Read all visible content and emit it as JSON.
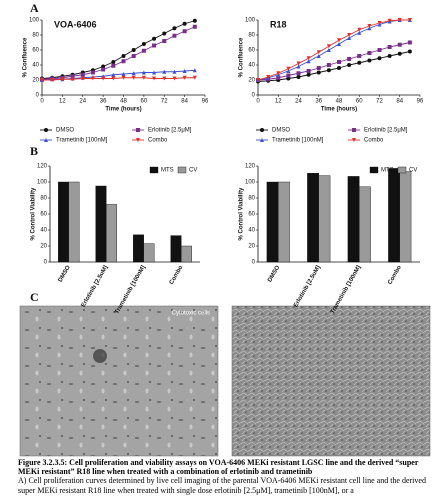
{
  "panel_labels": [
    "A",
    "B",
    "C"
  ],
  "chart_data": [
    {
      "type": "line",
      "title": "VOA-6406",
      "xlabel": "Time (hours)",
      "ylabel": "% Confluence",
      "x": [
        0,
        6,
        12,
        18,
        24,
        30,
        36,
        42,
        48,
        54,
        60,
        66,
        72,
        78,
        84,
        90
      ],
      "xlim": [
        0,
        96
      ],
      "xticks": [
        0,
        12,
        24,
        36,
        48,
        60,
        72,
        84,
        96
      ],
      "ylim": [
        0,
        100
      ],
      "yticks": [
        0,
        20,
        40,
        60,
        80,
        100
      ],
      "series": [
        {
          "name": "DMSO",
          "color": "#111111",
          "marker": "circle",
          "values": [
            22,
            23,
            25,
            27,
            30,
            33,
            38,
            44,
            52,
            60,
            68,
            75,
            82,
            89,
            95,
            99
          ]
        },
        {
          "name": "Erlotinib [2.5μM]",
          "color": "#7b2d8e",
          "marker": "square",
          "values": [
            21,
            22,
            23,
            25,
            27,
            30,
            34,
            39,
            45,
            52,
            59,
            66,
            72,
            79,
            85,
            91
          ]
        },
        {
          "name": "Trametinib [100nM]",
          "color": "#3a4fd8",
          "marker": "triangle",
          "values": [
            20,
            21,
            21,
            22,
            23,
            24,
            25,
            27,
            28,
            29,
            30,
            30,
            31,
            31,
            32,
            33
          ]
        },
        {
          "name": "Combo",
          "color": "#e0302a",
          "marker": "triangle-down",
          "values": [
            20,
            20,
            21,
            21,
            22,
            22,
            22,
            22,
            23,
            23,
            23,
            22,
            22,
            22,
            23,
            23
          ]
        }
      ]
    },
    {
      "type": "line",
      "title": "R18",
      "xlabel": "Time (hours)",
      "ylabel": "% Confluence",
      "x": [
        0,
        6,
        12,
        18,
        24,
        30,
        36,
        42,
        48,
        54,
        60,
        66,
        72,
        78,
        84,
        90
      ],
      "xlim": [
        0,
        96
      ],
      "xticks": [
        0,
        12,
        24,
        36,
        48,
        60,
        72,
        84,
        96
      ],
      "ylim": [
        0,
        100
      ],
      "yticks": [
        0,
        20,
        40,
        60,
        80,
        100
      ],
      "series": [
        {
          "name": "DMSO",
          "color": "#111111",
          "marker": "circle",
          "values": [
            18,
            19,
            20,
            22,
            24,
            27,
            30,
            33,
            36,
            40,
            43,
            46,
            49,
            52,
            55,
            58
          ]
        },
        {
          "name": "Erlotinib [2.5μM]",
          "color": "#7b2d8e",
          "marker": "square",
          "values": [
            20,
            21,
            23,
            26,
            29,
            32,
            36,
            40,
            44,
            48,
            52,
            56,
            60,
            64,
            67,
            70
          ]
        },
        {
          "name": "Trametinib [100nM]",
          "color": "#3a4fd8",
          "marker": "triangle",
          "values": [
            20,
            23,
            27,
            32,
            38,
            45,
            52,
            60,
            68,
            76,
            83,
            89,
            94,
            98,
            100,
            100
          ]
        },
        {
          "name": "Combo",
          "color": "#e0302a",
          "marker": "triangle-down",
          "values": [
            20,
            24,
            29,
            35,
            42,
            49,
            57,
            65,
            73,
            80,
            87,
            92,
            96,
            99,
            100,
            100
          ]
        }
      ]
    },
    {
      "type": "bar",
      "ylabel": "% Control Viability",
      "categories": [
        "DMSO",
        "Erlotinib [2.5uM]",
        "Trametinib [100nM]",
        "Combo"
      ],
      "ylim": [
        0,
        120
      ],
      "yticks": [
        0,
        20,
        40,
        60,
        80,
        100,
        120
      ],
      "series": [
        {
          "name": "MTS",
          "color": "#111111",
          "values": [
            100,
            95,
            34,
            33
          ]
        },
        {
          "name": "CV",
          "color": "#9a9a9a",
          "values": [
            100,
            72,
            23,
            20
          ]
        }
      ]
    },
    {
      "type": "bar",
      "ylabel": "% Control Viability",
      "categories": [
        "DMSO",
        "Erlotinib [2.5uM]",
        "Trametinib [100nM]",
        "Combo"
      ],
      "ylim": [
        0,
        120
      ],
      "yticks": [
        0,
        20,
        40,
        60,
        80,
        100,
        120
      ],
      "series": [
        {
          "name": "MTS",
          "color": "#111111",
          "values": [
            100,
            111,
            107,
            117
          ]
        },
        {
          "name": "CV",
          "color": "#9a9a9a",
          "values": [
            100,
            108,
            94,
            113
          ]
        }
      ]
    }
  ],
  "image_label": "Cytotoxic cells",
  "caption": {
    "title": "Figure 3.2.3.5: Cell proliferation and viability assays on VOA-6406 MEKi resistant LGSC line and the derived “super MEKi resistant” R18 line when treated with a combination of erlotinib and trametinib",
    "lines": [
      "A) Cell proliferation curves determined by live cell imaging of the parental VOA-6406 MEKi resistant cell line and the derived super MEKi resistant R18 line when treated with single dose erlotinib [2.5μM], trametinib [100nM], or a"
    ]
  }
}
